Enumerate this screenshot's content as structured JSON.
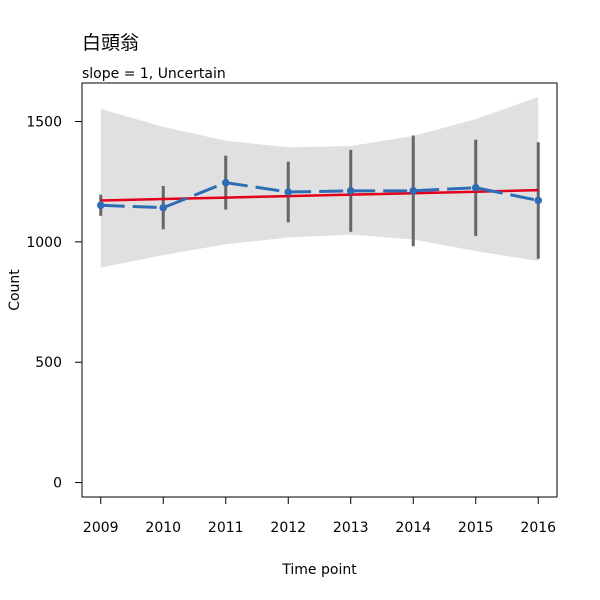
{
  "chart_data": {
    "type": "line",
    "title": "白頭翁",
    "subtitle": "slope = 1, Uncertain",
    "xlabel": "Time point",
    "ylabel": "Count",
    "x": [
      2009,
      2010,
      2011,
      2012,
      2013,
      2014,
      2015,
      2016
    ],
    "xlim": [
      2008.7,
      2016.3
    ],
    "ylim": [
      -60,
      1660
    ],
    "yticks": [
      0,
      500,
      1000,
      1500
    ],
    "series": [
      {
        "role": "observed",
        "values": [
          1152,
          1142,
          1246,
          1207,
          1212,
          1212,
          1225,
          1172
        ],
        "error_low": [
          1108,
          1052,
          1134,
          1081,
          1042,
          982,
          1025,
          930
        ],
        "error_high": [
          1196,
          1232,
          1358,
          1333,
          1382,
          1442,
          1425,
          1414
        ]
      },
      {
        "role": "trend",
        "values": [
          1172,
          1178,
          1184,
          1190,
          1196,
          1202,
          1208,
          1215
        ]
      }
    ],
    "confidence_band": {
      "lower": [
        893,
        945,
        990,
        1018,
        1030,
        1010,
        962,
        920
      ],
      "upper": [
        1552,
        1478,
        1420,
        1393,
        1398,
        1440,
        1510,
        1602
      ]
    },
    "grid": false,
    "colors": {
      "observed_line": "#2e6db4",
      "trend_line": "#e3001b",
      "error_bar": "#666666",
      "band": "#e0e0e0"
    }
  }
}
